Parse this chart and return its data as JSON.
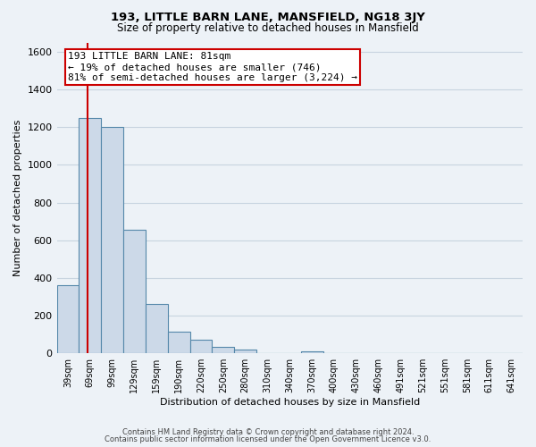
{
  "title1": "193, LITTLE BARN LANE, MANSFIELD, NG18 3JY",
  "title2": "Size of property relative to detached houses in Mansfield",
  "xlabel": "Distribution of detached houses by size in Mansfield",
  "ylabel": "Number of detached properties",
  "bin_labels": [
    "39sqm",
    "69sqm",
    "99sqm",
    "129sqm",
    "159sqm",
    "190sqm",
    "220sqm",
    "250sqm",
    "280sqm",
    "310sqm",
    "340sqm",
    "370sqm",
    "400sqm",
    "430sqm",
    "460sqm",
    "491sqm",
    "521sqm",
    "551sqm",
    "581sqm",
    "611sqm",
    "641sqm"
  ],
  "bar_values": [
    360,
    1250,
    1200,
    655,
    260,
    115,
    70,
    35,
    18,
    0,
    0,
    10,
    0,
    0,
    0,
    0,
    0,
    0,
    0,
    0,
    0
  ],
  "bar_color": "#ccd9e8",
  "bar_edgecolor": "#5588aa",
  "ylim": [
    0,
    1650
  ],
  "yticks": [
    0,
    200,
    400,
    600,
    800,
    1000,
    1200,
    1400,
    1600
  ],
  "annotation_text": "193 LITTLE BARN LANE: 81sqm\n← 19% of detached houses are smaller (746)\n81% of semi-detached houses are larger (3,224) →",
  "annotation_box_facecolor": "#ffffff",
  "annotation_box_edgecolor": "#cc0000",
  "vline_color": "#cc0000",
  "footnote1": "Contains HM Land Registry data © Crown copyright and database right 2024.",
  "footnote2": "Contains public sector information licensed under the Open Government Licence v3.0.",
  "grid_color": "#c8d4e0",
  "background_color": "#edf2f7",
  "title1_fontsize": 9.5,
  "title2_fontsize": 8.5,
  "xlabel_fontsize": 8,
  "ylabel_fontsize": 8,
  "tick_fontsize": 7,
  "ytick_fontsize": 8,
  "annotation_fontsize": 8,
  "footnote_fontsize": 6
}
